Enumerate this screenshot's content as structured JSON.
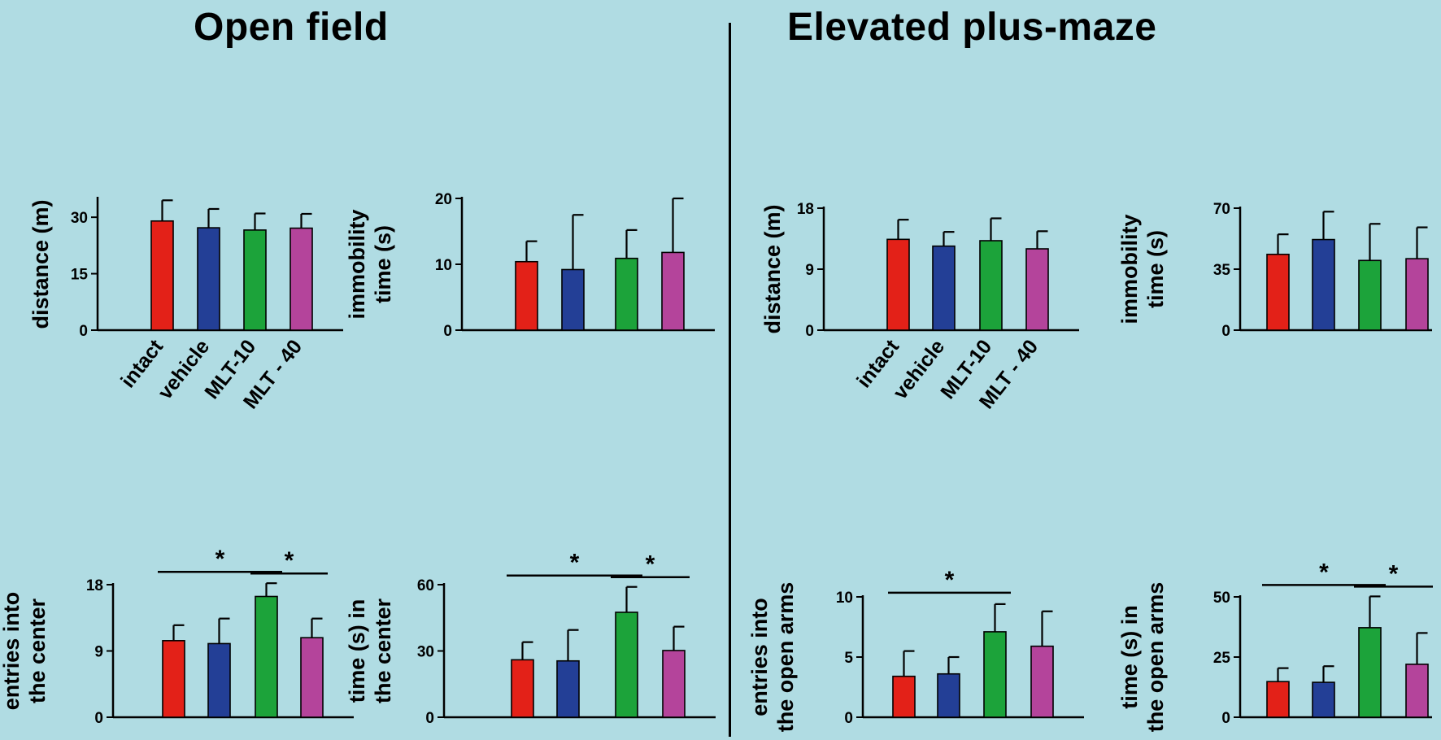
{
  "titles": {
    "open_field": "Open field",
    "elevated_plus_maze": "Elevated plus-maze"
  },
  "colors": {
    "background": "#b0dce3",
    "intact": "#e32118",
    "vehicle": "#233f96",
    "mlt10": "#1ca33a",
    "mlt40": "#b4449b"
  },
  "categories": [
    "intact",
    "vehicle",
    "MLT-10",
    "MLT - 40"
  ],
  "chart_data": [
    {
      "id": "of-distance",
      "type": "bar",
      "ylabel": [
        "distance (m)"
      ],
      "ylim": [
        0,
        35
      ],
      "ticks": [
        0,
        15,
        30
      ],
      "categories": [
        "intact",
        "vehicle",
        "MLT-10",
        "MLT - 40"
      ],
      "values": [
        29,
        27.2,
        26.6,
        27.1
      ],
      "errors": [
        5.5,
        5.0,
        4.4,
        3.8
      ],
      "sig": [],
      "show_categories": true
    },
    {
      "id": "of-immobility",
      "type": "bar",
      "ylabel": [
        "immobility",
        "time (s)"
      ],
      "ylim": [
        0,
        20
      ],
      "ticks": [
        0,
        10,
        20
      ],
      "categories": [
        "intact",
        "vehicle",
        "MLT-10",
        "MLT - 40"
      ],
      "values": [
        10.4,
        9.2,
        10.9,
        11.8
      ],
      "errors": [
        3.1,
        8.3,
        4.3,
        8.2
      ],
      "sig": [],
      "show_categories": false
    },
    {
      "id": "epm-distance",
      "type": "bar",
      "ylabel": [
        "distance (m)"
      ],
      "ylim": [
        0,
        18
      ],
      "ticks": [
        0,
        9,
        18
      ],
      "categories": [
        "intact",
        "vehicle",
        "MLT-10",
        "MLT - 40"
      ],
      "values": [
        13.4,
        12.4,
        13.2,
        12.0
      ],
      "errors": [
        2.9,
        2.1,
        3.3,
        2.6
      ],
      "sig": [],
      "show_categories": true
    },
    {
      "id": "epm-immobility",
      "type": "bar",
      "ylabel": [
        "immobility",
        "time (s)"
      ],
      "ylim": [
        0,
        70
      ],
      "ticks": [
        0,
        35,
        70
      ],
      "categories": [
        "intact",
        "vehicle",
        "MLT-10",
        "MLT - 40"
      ],
      "values": [
        43.5,
        52,
        40,
        41
      ],
      "errors": [
        11.5,
        16,
        21,
        18
      ],
      "sig": [],
      "show_categories": false
    },
    {
      "id": "of-entries",
      "type": "bar",
      "ylabel": [
        "entries into",
        "the center"
      ],
      "ylim": [
        0,
        18
      ],
      "ticks": [
        0,
        9,
        18
      ],
      "categories": [
        "intact",
        "vehicle",
        "MLT-10",
        "MLT - 40"
      ],
      "values": [
        10.4,
        10.0,
        16.4,
        10.8
      ],
      "errors": [
        2.1,
        3.4,
        1.8,
        2.6
      ],
      "sig": [
        {
          "from": 0,
          "to": 2,
          "label": "*"
        },
        {
          "from": 2,
          "to": 3,
          "label": "*"
        }
      ],
      "show_categories": false
    },
    {
      "id": "of-time-center",
      "type": "bar",
      "ylabel": [
        "time (s) in",
        "the center"
      ],
      "ylim": [
        0,
        60
      ],
      "ticks": [
        0,
        30,
        60
      ],
      "categories": [
        "intact",
        "vehicle",
        "MLT-10",
        "MLT - 40"
      ],
      "values": [
        26,
        25.5,
        47.5,
        30.2
      ],
      "errors": [
        8,
        14,
        11.5,
        10.8
      ],
      "sig": [
        {
          "from": 0,
          "to": 2,
          "label": "*"
        },
        {
          "from": 2,
          "to": 3,
          "label": "*"
        }
      ],
      "show_categories": false
    },
    {
      "id": "epm-entries",
      "type": "bar",
      "ylabel": [
        "entries into",
        "the open arms"
      ],
      "ylim": [
        0,
        10
      ],
      "ticks": [
        0,
        5,
        10
      ],
      "categories": [
        "intact",
        "vehicle",
        "MLT-10",
        "MLT - 40"
      ],
      "values": [
        3.4,
        3.6,
        7.1,
        5.9
      ],
      "errors": [
        2.1,
        1.4,
        2.3,
        2.9
      ],
      "sig": [
        {
          "from": 0,
          "to": 2,
          "label": "*"
        }
      ],
      "show_categories": false
    },
    {
      "id": "epm-time-arms",
      "type": "bar",
      "ylabel": [
        "time (s) in",
        "the open arms"
      ],
      "ylim": [
        0,
        50
      ],
      "ticks": [
        0,
        25,
        50
      ],
      "categories": [
        "intact",
        "vehicle",
        "MLT-10",
        "MLT - 40"
      ],
      "values": [
        14.8,
        14.5,
        37.2,
        22.0
      ],
      "errors": [
        5.6,
        6.7,
        13.0,
        13.0
      ],
      "sig": [
        {
          "from": 0,
          "to": 2,
          "label": "*"
        },
        {
          "from": 2,
          "to": 3,
          "label": "*"
        }
      ],
      "show_categories": false
    }
  ]
}
